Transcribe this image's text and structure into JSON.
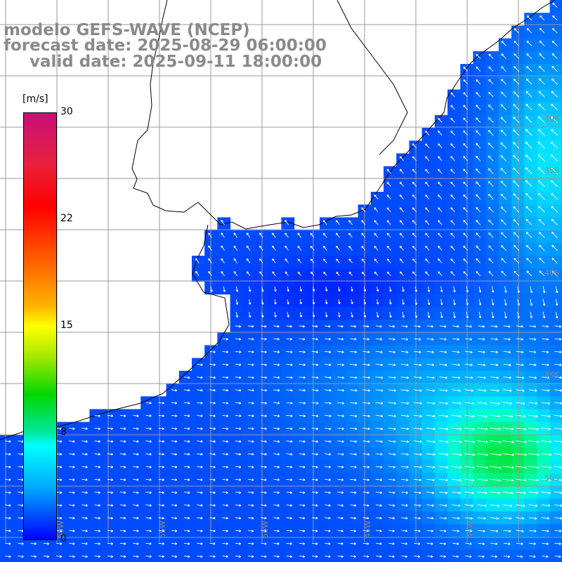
{
  "title": {
    "line1": "modelo GEFS-WAVE (NCEP)",
    "line2": "forecast date: 2025-08-29 06:00:00",
    "line3": "valid date: 2025-09-11 18:00:00"
  },
  "colorbar": {
    "unit": "[m/s]",
    "ticks": [
      "30",
      "22",
      "15",
      "8",
      "0"
    ],
    "colors": [
      "#c80f78",
      "#ff0000",
      "#ff6a00",
      "#ffff00",
      "#00d800",
      "#00ffff",
      "#00a8ff",
      "#0000ff"
    ]
  },
  "map": {
    "land_color": "#ffffff",
    "grid_color": "#9a9a9a",
    "coast_color": "#000000",
    "lat_labels": [
      "30S",
      "35S",
      "40S",
      "45S",
      "50S"
    ],
    "lon_labels": [
      "60W",
      "55W",
      "50W",
      "45W",
      "40W"
    ]
  }
}
